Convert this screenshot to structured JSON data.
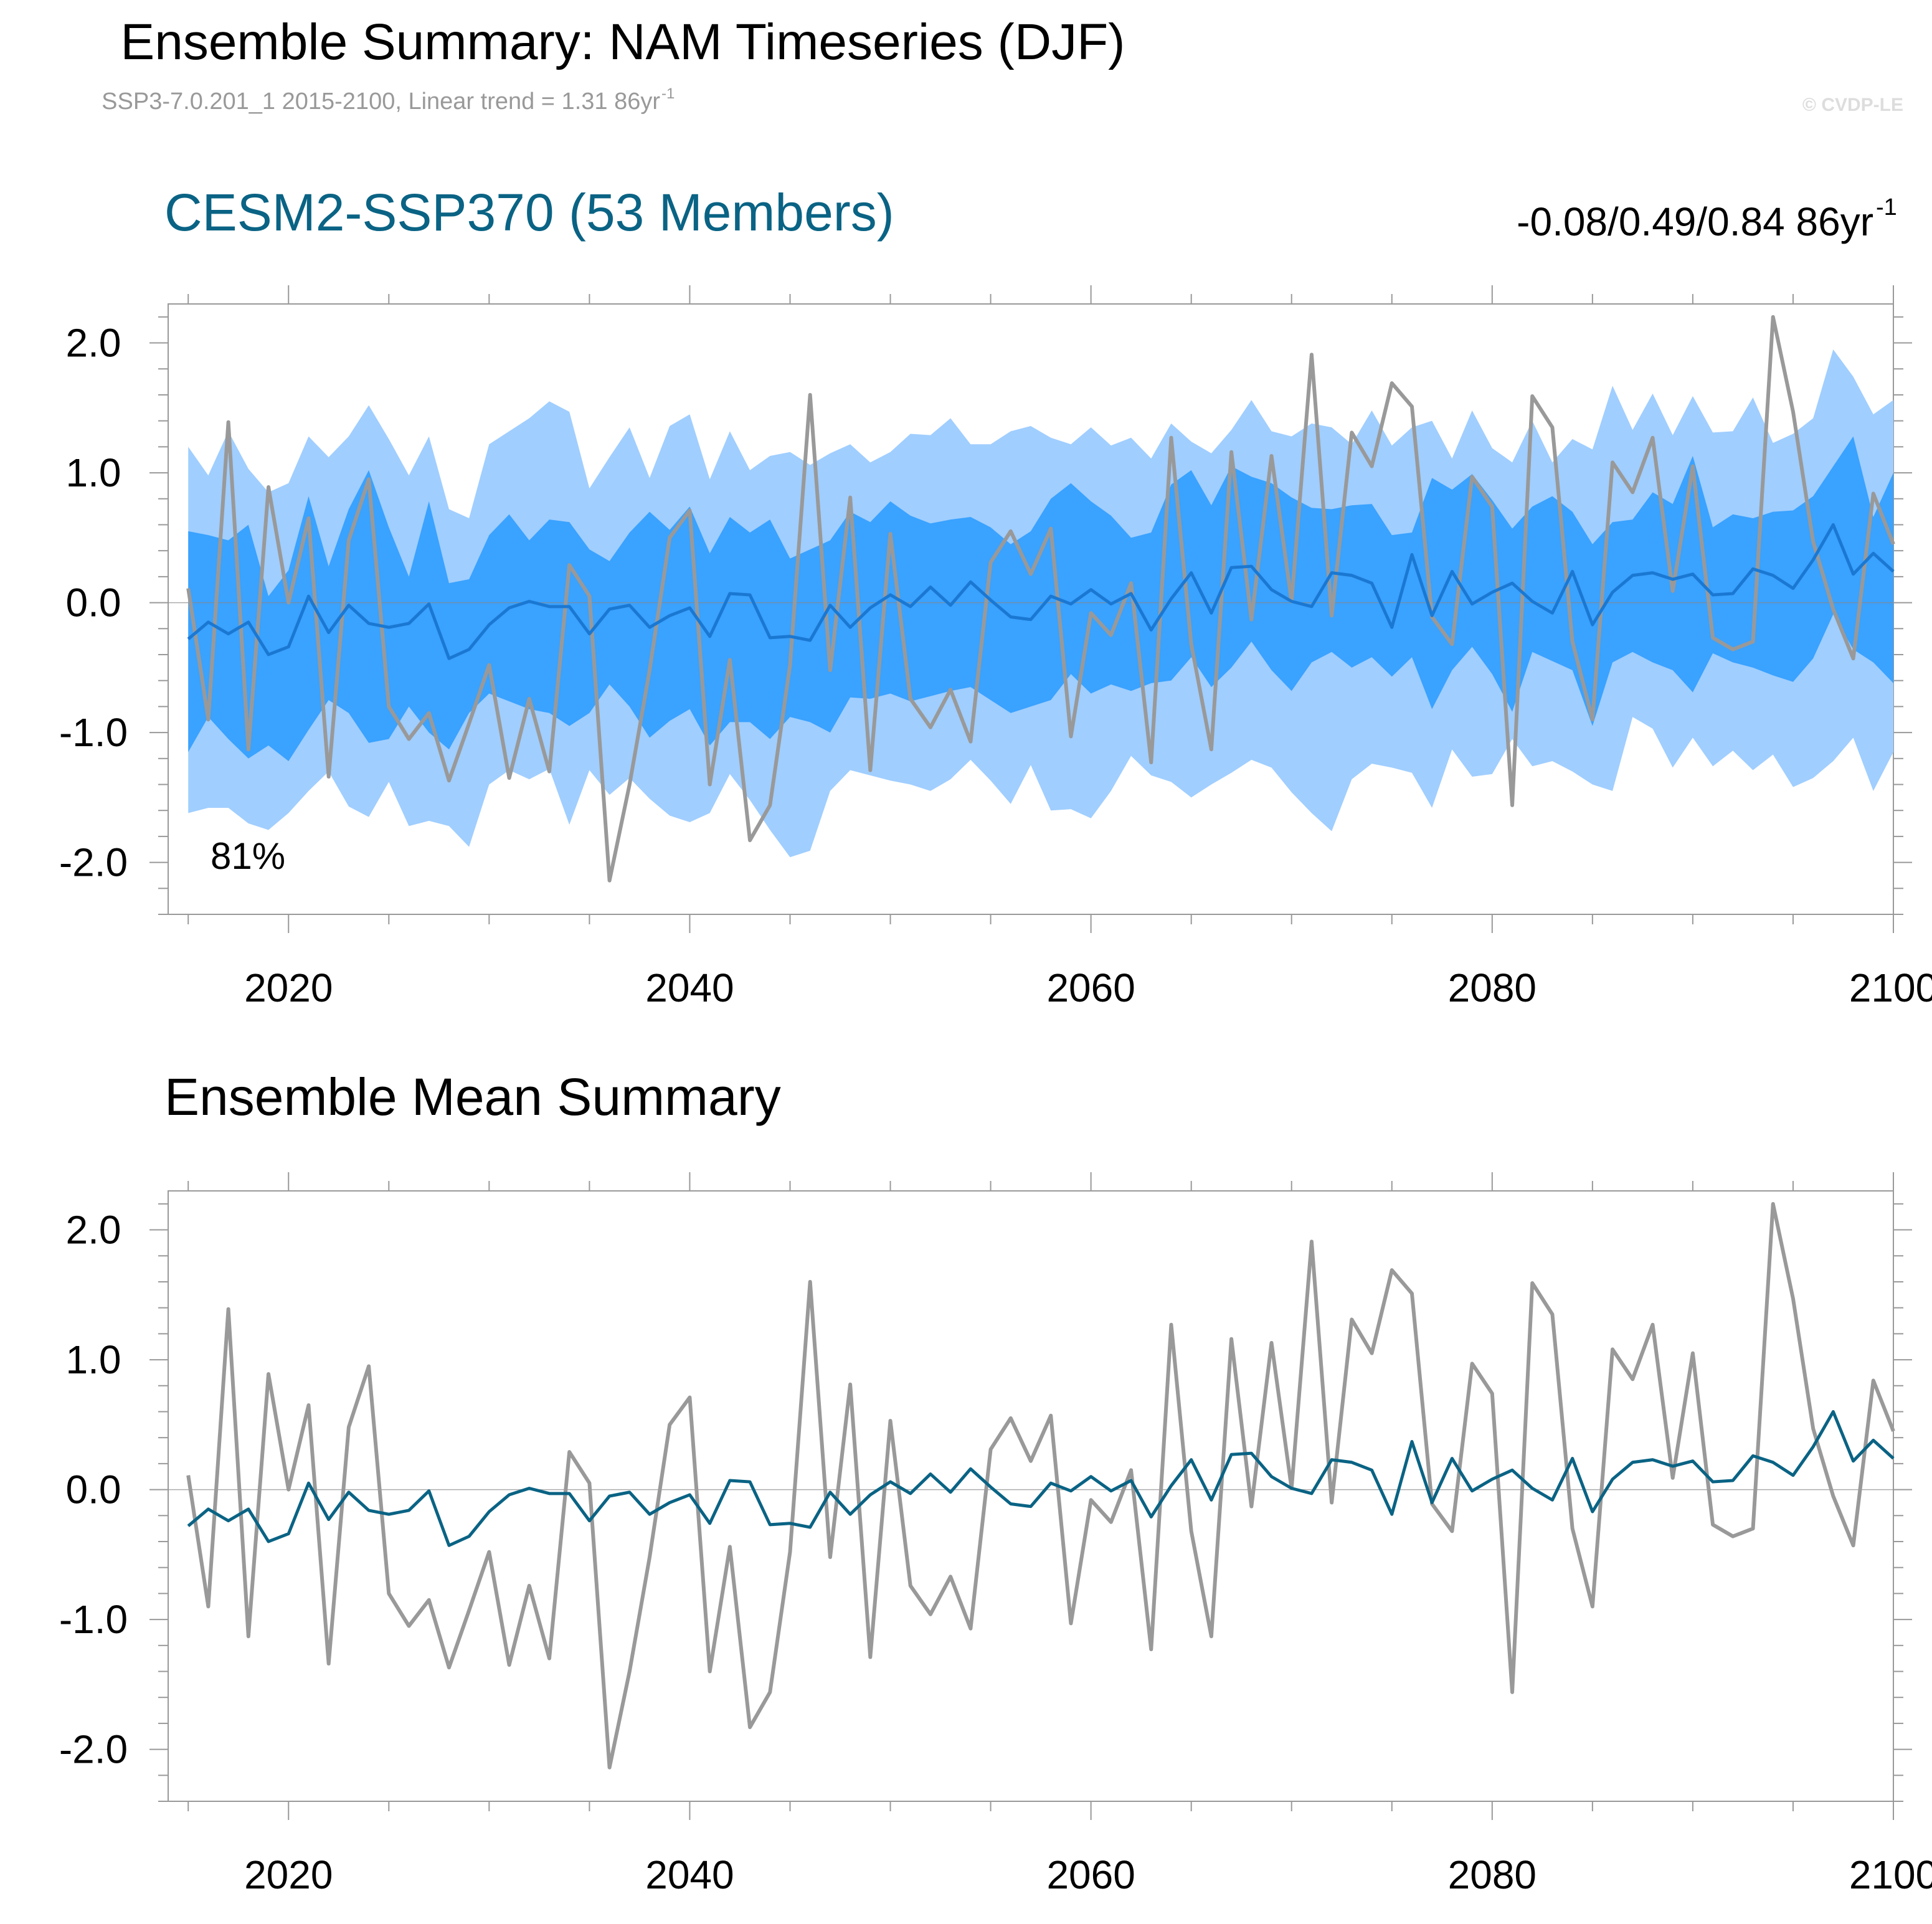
{
  "header": {
    "title": "Ensemble Summary: NAM Timeseries (DJF)",
    "subtitle": "SSP3-7.0.201_1 2015-2100, Linear trend = 1.31 86yr",
    "subtitle_sup": "-1",
    "copyright": "© CVDP-LE"
  },
  "colors": {
    "outer_band": "#a0ceff",
    "inner_band": "#3aa2ff",
    "panel1_mean": "#1a78d2",
    "panel2_mean": "#0a6384",
    "observed": "#999999",
    "ensemble_title": "#0a6384",
    "frame": "#999999"
  },
  "chart_data": [
    {
      "type": "line",
      "title": "CESM2-SSP370 (53 Members)",
      "right_label": "-0.08/0.49/0.84 86yr",
      "right_label_sup": "-1",
      "annotation": "81%",
      "x_range": [
        2014,
        2100
      ],
      "ylim": [
        -2.4,
        2.3
      ],
      "x_ticks": [
        2020,
        2040,
        2060,
        2080,
        2100
      ],
      "y_ticks": [
        -2.0,
        -1.0,
        0.0,
        1.0,
        2.0
      ],
      "y_tick_labels": [
        "-2.0",
        "-1.0",
        "0.0",
        "1.0",
        "2.0"
      ],
      "zero_line": true,
      "x": [
        2015,
        2016,
        2017,
        2018,
        2019,
        2020,
        2021,
        2022,
        2023,
        2024,
        2025,
        2026,
        2027,
        2028,
        2029,
        2030,
        2031,
        2032,
        2033,
        2034,
        2035,
        2036,
        2037,
        2038,
        2039,
        2040,
        2041,
        2042,
        2043,
        2044,
        2045,
        2046,
        2047,
        2048,
        2049,
        2050,
        2051,
        2052,
        2053,
        2054,
        2055,
        2056,
        2057,
        2058,
        2059,
        2060,
        2061,
        2062,
        2063,
        2064,
        2065,
        2066,
        2067,
        2068,
        2069,
        2070,
        2071,
        2072,
        2073,
        2074,
        2075,
        2076,
        2077,
        2078,
        2079,
        2080,
        2081,
        2082,
        2083,
        2084,
        2085,
        2086,
        2087,
        2088,
        2089,
        2090,
        2091,
        2092,
        2093,
        2094,
        2095,
        2096,
        2097,
        2098,
        2099,
        2100
      ],
      "series": [
        {
          "role": "band_outer_upper",
          "values": [
            1.2,
            0.98,
            1.32,
            1.03,
            0.85,
            0.92,
            1.28,
            1.12,
            1.28,
            1.52,
            1.26,
            0.98,
            1.28,
            0.72,
            0.65,
            1.22,
            1.32,
            1.42,
            1.55,
            1.47,
            0.88,
            1.12,
            1.35,
            0.96,
            1.36,
            1.45,
            0.95,
            1.32,
            1.02,
            1.13,
            1.16,
            1.06,
            1.15,
            1.22,
            1.08,
            1.16,
            1.3,
            1.29,
            1.42,
            1.22,
            1.22,
            1.32,
            1.36,
            1.27,
            1.22,
            1.35,
            1.21,
            1.27,
            1.11,
            1.38,
            1.24,
            1.15,
            1.33,
            1.56,
            1.32,
            1.28,
            1.38,
            1.35,
            1.22,
            1.48,
            1.21,
            1.35,
            1.4,
            1.11,
            1.48,
            1.19,
            1.08,
            1.4,
            1.08,
            1.26,
            1.18,
            1.67,
            1.33,
            1.61,
            1.29,
            1.59,
            1.31,
            1.32,
            1.58,
            1.23,
            1.3,
            1.42,
            1.95,
            1.74,
            1.45,
            1.56
          ]
        },
        {
          "role": "band_inner_upper",
          "values": [
            0.55,
            0.52,
            0.48,
            0.6,
            0.05,
            0.25,
            0.82,
            0.28,
            0.72,
            1.02,
            0.58,
            0.2,
            0.78,
            0.15,
            0.18,
            0.52,
            0.68,
            0.48,
            0.64,
            0.62,
            0.41,
            0.32,
            0.54,
            0.7,
            0.56,
            0.74,
            0.38,
            0.66,
            0.54,
            0.64,
            0.34,
            0.41,
            0.48,
            0.7,
            0.62,
            0.78,
            0.67,
            0.61,
            0.64,
            0.66,
            0.58,
            0.45,
            0.55,
            0.8,
            0.92,
            0.78,
            0.67,
            0.5,
            0.54,
            0.91,
            1.02,
            0.75,
            1.05,
            0.97,
            0.92,
            0.81,
            0.73,
            0.72,
            0.75,
            0.76,
            0.52,
            0.54,
            0.96,
            0.87,
            0.99,
            0.79,
            0.57,
            0.74,
            0.82,
            0.7,
            0.45,
            0.62,
            0.64,
            0.85,
            0.76,
            1.13,
            0.58,
            0.68,
            0.65,
            0.7,
            0.71,
            0.82,
            1.05,
            1.28,
            0.66,
            1.0
          ]
        },
        {
          "role": "band_inner_lower",
          "values": [
            -1.15,
            -0.88,
            -1.05,
            -1.2,
            -1.1,
            -1.22,
            -0.98,
            -0.75,
            -0.85,
            -1.08,
            -1.05,
            -0.8,
            -1.0,
            -1.13,
            -0.85,
            -0.7,
            -0.76,
            -0.82,
            -0.85,
            -0.95,
            -0.85,
            -0.63,
            -0.8,
            -1.04,
            -0.91,
            -0.82,
            -1.1,
            -0.92,
            -0.92,
            -1.05,
            -0.88,
            -0.92,
            -1.0,
            -0.73,
            -0.74,
            -0.7,
            -0.76,
            -0.72,
            -0.68,
            -0.65,
            -0.75,
            -0.85,
            -0.8,
            -0.75,
            -0.55,
            -0.7,
            -0.63,
            -0.68,
            -0.62,
            -0.6,
            -0.42,
            -0.65,
            -0.5,
            -0.3,
            -0.52,
            -0.68,
            -0.46,
            -0.38,
            -0.5,
            -0.42,
            -0.57,
            -0.42,
            -0.82,
            -0.52,
            -0.34,
            -0.55,
            -0.84,
            -0.38,
            -0.45,
            -0.52,
            -0.95,
            -0.46,
            -0.38,
            -0.46,
            -0.52,
            -0.69,
            -0.39,
            -0.46,
            -0.5,
            -0.56,
            -0.61,
            -0.43,
            -0.09,
            -0.36,
            -0.46,
            -0.62
          ]
        },
        {
          "role": "band_outer_lower",
          "values": [
            -1.62,
            -1.58,
            -1.58,
            -1.7,
            -1.75,
            -1.62,
            -1.45,
            -1.3,
            -1.57,
            -1.65,
            -1.38,
            -1.72,
            -1.68,
            -1.72,
            -1.88,
            -1.4,
            -1.29,
            -1.36,
            -1.28,
            -1.71,
            -1.29,
            -1.48,
            -1.35,
            -1.51,
            -1.64,
            -1.69,
            -1.62,
            -1.32,
            -1.52,
            -1.75,
            -1.96,
            -1.91,
            -1.45,
            -1.29,
            -1.33,
            -1.37,
            -1.4,
            -1.45,
            -1.36,
            -1.21,
            -1.37,
            -1.55,
            -1.25,
            -1.6,
            -1.59,
            -1.66,
            -1.45,
            -1.18,
            -1.33,
            -1.38,
            -1.5,
            -1.4,
            -1.31,
            -1.21,
            -1.27,
            -1.46,
            -1.62,
            -1.76,
            -1.36,
            -1.24,
            -1.27,
            -1.31,
            -1.58,
            -1.13,
            -1.34,
            -1.32,
            -1.05,
            -1.26,
            -1.22,
            -1.3,
            -1.4,
            -1.45,
            -0.88,
            -0.97,
            -1.27,
            -1.04,
            -1.26,
            -1.14,
            -1.29,
            -1.17,
            -1.42,
            -1.35,
            -1.22,
            -1.04,
            -1.45,
            -1.15
          ]
        },
        {
          "role": "ensemble_mean",
          "values": [
            -0.28,
            -0.15,
            -0.24,
            -0.15,
            -0.4,
            -0.34,
            0.05,
            -0.23,
            -0.02,
            -0.16,
            -0.19,
            -0.16,
            -0.01,
            -0.43,
            -0.36,
            -0.17,
            -0.04,
            0.01,
            -0.03,
            -0.03,
            -0.24,
            -0.05,
            -0.02,
            -0.19,
            -0.1,
            -0.04,
            -0.26,
            0.07,
            0.06,
            -0.27,
            -0.26,
            -0.29,
            -0.02,
            -0.19,
            -0.04,
            0.06,
            -0.03,
            0.12,
            -0.02,
            0.16,
            0.02,
            -0.11,
            -0.13,
            0.05,
            -0.01,
            0.1,
            -0.01,
            0.07,
            -0.21,
            0.03,
            0.23,
            -0.08,
            0.27,
            0.28,
            0.1,
            0.01,
            -0.03,
            0.23,
            0.21,
            0.15,
            -0.19,
            0.37,
            -0.1,
            0.24,
            -0.01,
            0.08,
            0.15,
            0.01,
            -0.08,
            0.24,
            -0.17,
            0.08,
            0.21,
            0.23,
            0.18,
            0.22,
            0.06,
            0.07,
            0.26,
            0.21,
            0.11,
            0.33,
            0.6,
            0.22,
            0.38,
            0.24
          ]
        },
        {
          "role": "observed",
          "values": [
            0.11,
            -0.9,
            1.39,
            -1.13,
            0.89,
            0.0,
            0.65,
            -1.34,
            0.48,
            0.95,
            -0.8,
            -1.05,
            -0.85,
            -1.37,
            -0.93,
            -0.48,
            -1.35,
            -0.74,
            -1.3,
            0.29,
            0.05,
            -2.14,
            -1.4,
            -0.52,
            0.5,
            0.71,
            -1.4,
            -0.44,
            -1.83,
            -1.56,
            -0.48,
            1.6,
            -0.52,
            0.81,
            -1.29,
            0.53,
            -0.74,
            -0.96,
            -0.67,
            -1.07,
            0.31,
            0.55,
            0.22,
            0.57,
            -1.03,
            -0.08,
            -0.25,
            0.15,
            -1.23,
            1.27,
            -0.32,
            -1.13,
            1.16,
            -0.13,
            1.13,
            0.01,
            1.91,
            -0.1,
            1.31,
            1.05,
            1.69,
            1.51,
            -0.11,
            -0.32,
            0.97,
            0.74,
            -1.56,
            1.59,
            1.35,
            -0.3,
            -0.9,
            1.08,
            0.85,
            1.27,
            0.09,
            1.05,
            -0.27,
            -0.36,
            -0.3,
            2.2,
            1.47,
            0.47,
            -0.05,
            -0.43,
            0.84,
            0.45
          ]
        }
      ]
    },
    {
      "type": "line",
      "title": "Ensemble Mean Summary",
      "x_range": [
        2014,
        2100
      ],
      "ylim": [
        -2.4,
        2.3
      ],
      "x_ticks": [
        2020,
        2040,
        2060,
        2080,
        2100
      ],
      "y_ticks": [
        -2.0,
        -1.0,
        0.0,
        1.0,
        2.0
      ],
      "y_tick_labels": [
        "-2.0",
        "-1.0",
        "0.0",
        "1.0",
        "2.0"
      ],
      "zero_line": true,
      "series_ref": [
        "ensemble_mean",
        "observed"
      ]
    }
  ]
}
